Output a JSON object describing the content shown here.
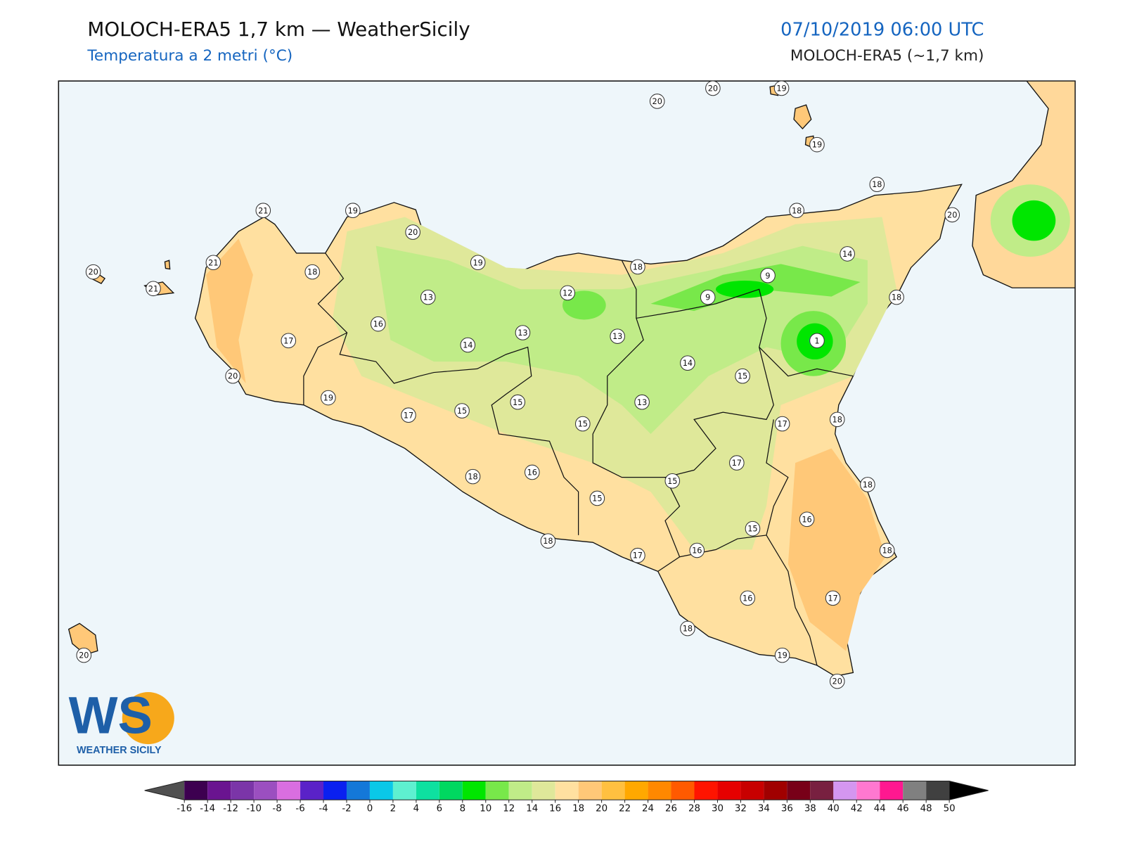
{
  "header": {
    "title": "MOLOCH-ERA5 1,7 km — WeatherSicily",
    "subtitle": "Temperatura a 2 metri (°C)",
    "datetime": "07/10/2019 06:00 UTC",
    "model": "MOLOCH-ERA5 (~1,7 km)"
  },
  "logo": {
    "mark": "WS",
    "name": "WEATHER SICILY"
  },
  "stations": [
    20,
    20,
    19,
    19,
    18,
    20,
    18,
    14,
    18,
    9,
    9,
    1,
    15,
    17,
    18,
    18,
    12,
    13,
    14,
    13,
    17,
    15,
    18,
    16,
    15,
    18,
    16,
    17,
    15,
    15,
    15,
    16,
    18,
    18,
    13,
    14,
    15,
    17,
    19,
    20,
    17,
    16,
    13,
    19,
    20,
    19,
    21,
    21,
    18,
    21,
    20,
    20,
    18,
    16,
    17,
    19,
    20
  ],
  "colorbar": {
    "ticks": [
      -16,
      -14,
      -12,
      -10,
      -8,
      -6,
      -4,
      -2,
      0,
      2,
      4,
      6,
      8,
      10,
      12,
      14,
      16,
      18,
      20,
      22,
      24,
      26,
      28,
      30,
      32,
      34,
      36,
      38,
      40,
      42,
      44,
      46,
      48,
      50
    ],
    "colors": [
      "#3d0050",
      "#6a1490",
      "#7b35a8",
      "#9b4fc0",
      "#d96ee0",
      "#5a22c8",
      "#0a20f0",
      "#1478d8",
      "#0ac8e8",
      "#5ef0d0",
      "#0ee0a0",
      "#00d860",
      "#00e600",
      "#78e84a",
      "#c0ec88",
      "#dfe89a",
      "#ffe0a0",
      "#ffc878",
      "#ffc040",
      "#ffa800",
      "#ff8800",
      "#ff5a00",
      "#ff1400",
      "#e60000",
      "#c80000",
      "#a00000",
      "#780018",
      "#782040",
      "#d496f0",
      "#ff78d0",
      "#ff1890",
      "#808080",
      "#404040"
    ],
    "under_color": "#505050",
    "over_color": "#000000"
  }
}
